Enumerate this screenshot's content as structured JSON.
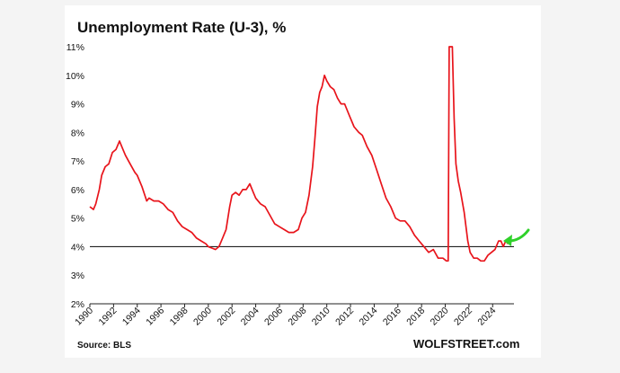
{
  "chart_data": {
    "type": "line",
    "title": "Unemployment Rate (U-3), %",
    "source": "Source: BLS",
    "brand": "WOLFSTREET.com",
    "ylim": [
      2,
      11
    ],
    "xlim": [
      1990,
      2025.8
    ],
    "yticks": [
      2,
      3,
      4,
      5,
      6,
      7,
      8,
      9,
      10,
      11
    ],
    "ytick_labels": [
      "2%",
      "3%",
      "4%",
      "5%",
      "6%",
      "7%",
      "8%",
      "9%",
      "10%",
      "11%"
    ],
    "xticks": [
      1990,
      1992,
      1994,
      1996,
      1998,
      2000,
      2002,
      2004,
      2006,
      2008,
      2010,
      2012,
      2014,
      2016,
      2018,
      2020,
      2022,
      2024
    ],
    "xtick_labels": [
      "1990",
      "1992",
      "1994",
      "1996",
      "1998",
      "2000",
      "2002",
      "2004",
      "2006",
      "2008",
      "2010",
      "2012",
      "2014",
      "2016",
      "2018",
      "2020",
      "2022",
      "2024"
    ],
    "reference_line": {
      "y": 4.0,
      "color": "#222222"
    },
    "colors": {
      "series": "#e8141b",
      "arrow": "#2fd12a"
    },
    "arrow_icon": "green-arrow-icon",
    "series": [
      {
        "x": [
          1990.0,
          1990.3,
          1990.5,
          1990.8,
          1991.0,
          1991.3,
          1991.6,
          1991.9,
          1992.2,
          1992.5,
          1992.8,
          1993.0,
          1993.4,
          1993.8,
          1994.0,
          1994.4,
          1994.8,
          1995.0,
          1995.4,
          1995.8,
          1996.2,
          1996.6,
          1997.0,
          1997.4,
          1997.8,
          1998.2,
          1998.6,
          1999.0,
          1999.4,
          1999.8,
          2000.0,
          2000.3,
          2000.6,
          2000.9,
          2001.2,
          2001.5,
          2001.8,
          2002.0,
          2002.3,
          2002.6,
          2002.9,
          2003.2,
          2003.5,
          2003.8,
          2004.0,
          2004.4,
          2004.8,
          2005.2,
          2005.6,
          2006.0,
          2006.4,
          2006.8,
          2007.2,
          2007.6,
          2007.9,
          2008.2,
          2008.5,
          2008.8,
          2009.0,
          2009.2,
          2009.4,
          2009.6,
          2009.8,
          2010.0,
          2010.3,
          2010.6,
          2010.9,
          2011.2,
          2011.5,
          2011.9,
          2012.3,
          2012.7,
          2013.0,
          2013.4,
          2013.8,
          2014.2,
          2014.6,
          2015.0,
          2015.4,
          2015.8,
          2016.2,
          2016.6,
          2017.0,
          2017.4,
          2017.8,
          2018.2,
          2018.6,
          2019.0,
          2019.4,
          2019.8,
          2020.1,
          2020.25,
          2020.33,
          2020.45,
          2020.6,
          2020.75,
          2020.9,
          2021.1,
          2021.3,
          2021.6,
          2021.9,
          2022.1,
          2022.4,
          2022.7,
          2023.0,
          2023.3,
          2023.6,
          2023.9,
          2024.2,
          2024.5,
          2024.7,
          2024.9,
          2025.1,
          2025.3
        ],
        "y": [
          5.4,
          5.3,
          5.5,
          6.0,
          6.5,
          6.8,
          6.9,
          7.3,
          7.4,
          7.7,
          7.4,
          7.2,
          6.9,
          6.6,
          6.5,
          6.1,
          5.6,
          5.7,
          5.6,
          5.6,
          5.5,
          5.3,
          5.2,
          4.9,
          4.7,
          4.6,
          4.5,
          4.3,
          4.2,
          4.1,
          4.0,
          3.95,
          3.9,
          4.0,
          4.3,
          4.6,
          5.4,
          5.8,
          5.9,
          5.8,
          6.0,
          6.0,
          6.2,
          5.9,
          5.7,
          5.5,
          5.4,
          5.1,
          4.8,
          4.7,
          4.6,
          4.5,
          4.5,
          4.6,
          5.0,
          5.2,
          5.8,
          6.8,
          7.8,
          8.9,
          9.4,
          9.6,
          10.0,
          9.8,
          9.6,
          9.5,
          9.2,
          9.0,
          9.0,
          8.6,
          8.2,
          8.0,
          7.9,
          7.5,
          7.2,
          6.7,
          6.2,
          5.7,
          5.4,
          5.0,
          4.9,
          4.9,
          4.7,
          4.4,
          4.2,
          4.0,
          3.8,
          3.9,
          3.6,
          3.6,
          3.5,
          3.5,
          11.0,
          11.0,
          11.0,
          8.5,
          6.9,
          6.3,
          5.9,
          5.2,
          4.2,
          3.8,
          3.6,
          3.6,
          3.5,
          3.5,
          3.7,
          3.8,
          3.9,
          4.2,
          4.2,
          4.0,
          4.2,
          4.1
        ]
      }
    ]
  }
}
